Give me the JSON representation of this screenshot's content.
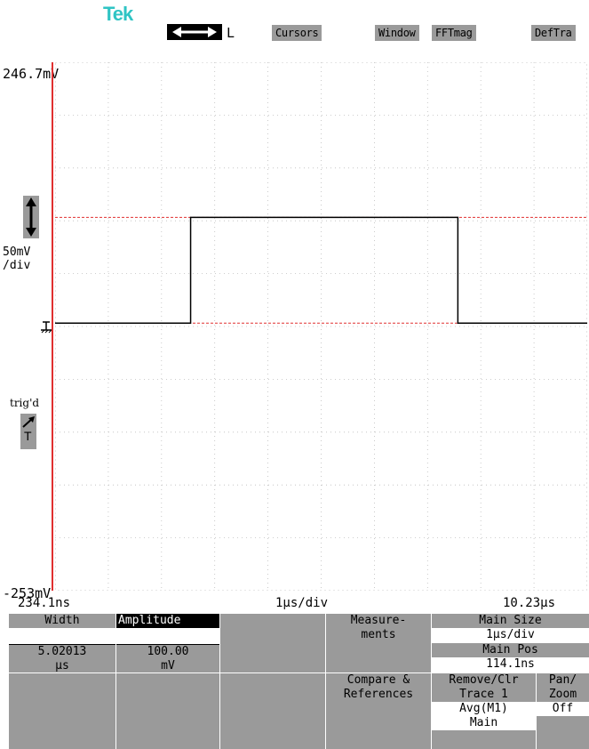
{
  "header": {
    "logo": "Tek",
    "horizontal_mode": "L",
    "buttons": [
      "Cursors",
      "Window",
      "FFTmag",
      "DefTra"
    ]
  },
  "y_axis": {
    "top_label": "246.7mV",
    "bottom_label": "-253mV",
    "scale_line1": "50mV",
    "scale_line2": "/div"
  },
  "trigger": {
    "status": "trig'd",
    "source": "T"
  },
  "time_axis": {
    "start": "234.1ns",
    "per_div": "1µs/div",
    "end": "10.23µs"
  },
  "waveform": {
    "time_range_us": [
      0.2341,
      10.23
    ],
    "voltage_range_mV": [
      -253,
      246.7
    ],
    "low_level_mV": 0,
    "high_level_mV": 100,
    "rise_time_us": 2.78,
    "fall_time_us": 7.8,
    "cursor_upper_mV": 100,
    "cursor_lower_mV": 0,
    "trace_color": "#000000",
    "cursor_color": "#e03030"
  },
  "measurements": {
    "col1_label": "Width",
    "col1_value": "5.02013",
    "col1_unit": "µs",
    "col2_label": "Amplitude",
    "col2_value": "100.00",
    "col2_unit": "mV"
  },
  "menu": {
    "measurements_line1": "Measure-",
    "measurements_line2": "ments",
    "main_size_label": "Main Size",
    "main_size_value": "1µs/div",
    "main_pos_label": "Main Pos",
    "main_pos_value": "114.1ns",
    "compare_line1": "Compare &",
    "compare_line2": "References",
    "remove_line1": "Remove/Clr",
    "remove_line2": "Trace 1",
    "remove_line3": "Avg(M1)",
    "remove_line4": "Main",
    "panzoom_line1": "Pan/",
    "panzoom_line2": "Zoom",
    "panzoom_value": "Off"
  }
}
